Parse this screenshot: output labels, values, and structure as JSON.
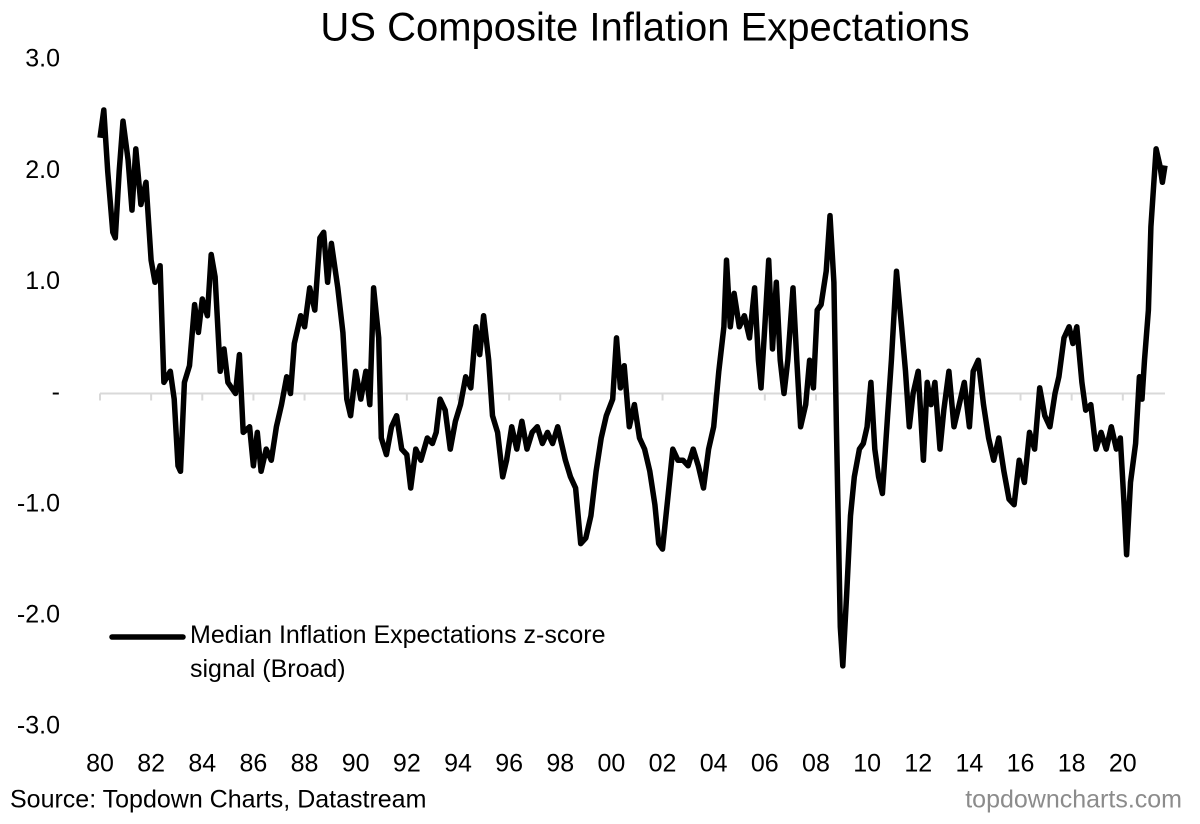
{
  "chart_data": {
    "type": "line",
    "title": "US Composite Inflation Expectations",
    "source": "Source: Topdown Charts, Datastream",
    "watermark": "topdowncharts.com",
    "legend": "lower left",
    "xlim": [
      1980,
      2021.65
    ],
    "xticks": [
      {
        "value": 1980,
        "label": "80"
      },
      {
        "value": 1982,
        "label": "82"
      },
      {
        "value": 1984,
        "label": "84"
      },
      {
        "value": 1986,
        "label": "86"
      },
      {
        "value": 1988,
        "label": "88"
      },
      {
        "value": 1990,
        "label": "90"
      },
      {
        "value": 1992,
        "label": "92"
      },
      {
        "value": 1994,
        "label": "94"
      },
      {
        "value": 1996,
        "label": "96"
      },
      {
        "value": 1998,
        "label": "98"
      },
      {
        "value": 2000,
        "label": "00"
      },
      {
        "value": 2002,
        "label": "02"
      },
      {
        "value": 2004,
        "label": "04"
      },
      {
        "value": 2006,
        "label": "06"
      },
      {
        "value": 2008,
        "label": "08"
      },
      {
        "value": 2010,
        "label": "10"
      },
      {
        "value": 2012,
        "label": "12"
      },
      {
        "value": 2014,
        "label": "14"
      },
      {
        "value": 2016,
        "label": "16"
      },
      {
        "value": 2018,
        "label": "18"
      },
      {
        "value": 2020,
        "label": "20"
      }
    ],
    "ylim": [
      -3,
      3
    ],
    "yticks": [
      {
        "value": 3,
        "label": "3.0"
      },
      {
        "value": 2,
        "label": "2.0"
      },
      {
        "value": 1,
        "label": "1.0"
      },
      {
        "value": 0,
        "label": "-"
      },
      {
        "value": -1,
        "label": "-1.0"
      },
      {
        "value": -2,
        "label": "-2.0"
      },
      {
        "value": -3,
        "label": "-3.0"
      }
    ],
    "x": [
      1980.0,
      1980.15,
      1980.3,
      1980.5,
      1980.6,
      1980.75,
      1980.9,
      1981.1,
      1981.25,
      1981.4,
      1981.6,
      1981.8,
      1982.0,
      1982.15,
      1982.35,
      1982.5,
      1982.75,
      1982.9,
      1983.05,
      1983.15,
      1983.3,
      1983.5,
      1983.7,
      1983.85,
      1984.0,
      1984.2,
      1984.35,
      1984.5,
      1984.7,
      1984.85,
      1985.0,
      1985.3,
      1985.45,
      1985.6,
      1985.85,
      1986.0,
      1986.15,
      1986.3,
      1986.5,
      1986.7,
      1986.9,
      1987.1,
      1987.3,
      1987.45,
      1987.6,
      1987.85,
      1988.0,
      1988.2,
      1988.4,
      1988.6,
      1988.75,
      1988.9,
      1989.05,
      1989.3,
      1989.5,
      1989.65,
      1989.8,
      1990.0,
      1990.2,
      1990.4,
      1990.55,
      1990.7,
      1990.9,
      1991.0,
      1991.2,
      1991.4,
      1991.6,
      1991.8,
      1992.0,
      1992.15,
      1992.35,
      1992.55,
      1992.8,
      1993.0,
      1993.15,
      1993.3,
      1993.5,
      1993.7,
      1993.9,
      1994.1,
      1994.3,
      1994.5,
      1994.7,
      1994.85,
      1995.0,
      1995.2,
      1995.35,
      1995.55,
      1995.75,
      1995.9,
      1996.1,
      1996.3,
      1996.5,
      1996.7,
      1996.9,
      1997.1,
      1997.3,
      1997.5,
      1997.7,
      1997.9,
      1998.2,
      1998.4,
      1998.6,
      1998.8,
      1999.0,
      1999.2,
      1999.4,
      1999.6,
      1999.8,
      2000.05,
      2000.2,
      2000.35,
      2000.5,
      2000.7,
      2000.9,
      2001.1,
      2001.3,
      2001.5,
      2001.7,
      2001.85,
      2002.0,
      2002.2,
      2002.4,
      2002.6,
      2002.8,
      2003.0,
      2003.2,
      2003.4,
      2003.6,
      2003.8,
      2004.0,
      2004.2,
      2004.4,
      2004.5,
      2004.65,
      2004.8,
      2005.0,
      2005.2,
      2005.4,
      2005.6,
      2005.75,
      2005.85,
      2006.0,
      2006.15,
      2006.3,
      2006.45,
      2006.6,
      2006.75,
      2006.9,
      2007.1,
      2007.25,
      2007.4,
      2007.6,
      2007.75,
      2007.9,
      2008.05,
      2008.2,
      2008.4,
      2008.55,
      2008.7,
      2008.8,
      2008.95,
      2009.05,
      2009.2,
      2009.35,
      2009.5,
      2009.7,
      2009.85,
      2010.0,
      2010.15,
      2010.3,
      2010.45,
      2010.6,
      2010.8,
      2010.95,
      2011.15,
      2011.35,
      2011.5,
      2011.65,
      2011.8,
      2012.0,
      2012.2,
      2012.35,
      2012.5,
      2012.65,
      2012.85,
      2013.0,
      2013.2,
      2013.4,
      2013.6,
      2013.8,
      2014.0,
      2014.15,
      2014.35,
      2014.55,
      2014.75,
      2014.95,
      2015.15,
      2015.35,
      2015.55,
      2015.75,
      2015.95,
      2016.15,
      2016.35,
      2016.55,
      2016.75,
      2016.95,
      2017.15,
      2017.35,
      2017.5,
      2017.7,
      2017.9,
      2018.05,
      2018.2,
      2018.4,
      2018.55,
      2018.75,
      2018.95,
      2019.15,
      2019.35,
      2019.55,
      2019.75,
      2019.9,
      2020.05,
      2020.15,
      2020.3,
      2020.5,
      2020.65,
      2020.75,
      2020.85,
      2021.0,
      2021.1,
      2021.3,
      2021.45,
      2021.55,
      2021.65
    ],
    "series": [
      {
        "name": "Median Inflation Expectations z-score signal (Broad)",
        "color": "#000000",
        "values": [
          2.3,
          2.55,
          2.0,
          1.45,
          1.4,
          2.0,
          2.45,
          2.1,
          1.65,
          2.2,
          1.7,
          1.9,
          1.2,
          1.0,
          1.15,
          0.1,
          0.2,
          -0.05,
          -0.65,
          -0.7,
          0.1,
          0.25,
          0.8,
          0.55,
          0.85,
          0.7,
          1.25,
          1.05,
          0.2,
          0.4,
          0.1,
          0.0,
          0.35,
          -0.35,
          -0.3,
          -0.65,
          -0.35,
          -0.7,
          -0.5,
          -0.6,
          -0.3,
          -0.1,
          0.15,
          0.0,
          0.45,
          0.7,
          0.6,
          0.95,
          0.75,
          1.4,
          1.45,
          1.0,
          1.35,
          0.95,
          0.55,
          -0.05,
          -0.2,
          0.2,
          -0.05,
          0.2,
          -0.1,
          0.95,
          0.5,
          -0.4,
          -0.55,
          -0.3,
          -0.2,
          -0.5,
          -0.55,
          -0.85,
          -0.5,
          -0.6,
          -0.4,
          -0.45,
          -0.35,
          -0.05,
          -0.15,
          -0.5,
          -0.25,
          -0.1,
          0.15,
          0.05,
          0.6,
          0.35,
          0.7,
          0.3,
          -0.2,
          -0.35,
          -0.75,
          -0.6,
          -0.3,
          -0.5,
          -0.25,
          -0.5,
          -0.35,
          -0.3,
          -0.45,
          -0.35,
          -0.45,
          -0.3,
          -0.6,
          -0.75,
          -0.85,
          -1.35,
          -1.3,
          -1.1,
          -0.7,
          -0.4,
          -0.2,
          -0.05,
          0.5,
          0.05,
          0.25,
          -0.3,
          -0.1,
          -0.4,
          -0.5,
          -0.7,
          -1.0,
          -1.35,
          -1.4,
          -0.95,
          -0.5,
          -0.6,
          -0.6,
          -0.65,
          -0.5,
          -0.65,
          -0.85,
          -0.5,
          -0.3,
          0.2,
          0.6,
          1.2,
          0.6,
          0.9,
          0.6,
          0.7,
          0.5,
          0.95,
          0.3,
          0.05,
          0.6,
          1.2,
          0.4,
          1.0,
          0.3,
          0.0,
          0.3,
          0.95,
          0.3,
          -0.3,
          -0.1,
          0.3,
          0.05,
          0.75,
          0.8,
          1.1,
          1.6,
          1.0,
          -0.3,
          -2.1,
          -2.45,
          -1.8,
          -1.1,
          -0.75,
          -0.5,
          -0.45,
          -0.3,
          0.1,
          -0.5,
          -0.75,
          -0.9,
          -0.2,
          0.3,
          1.1,
          0.6,
          0.2,
          -0.3,
          0.0,
          0.2,
          -0.6,
          0.1,
          -0.1,
          0.1,
          -0.5,
          -0.15,
          0.2,
          -0.3,
          -0.1,
          0.1,
          -0.3,
          0.2,
          0.3,
          -0.1,
          -0.4,
          -0.6,
          -0.4,
          -0.7,
          -0.95,
          -1.0,
          -0.6,
          -0.8,
          -0.35,
          -0.5,
          0.05,
          -0.2,
          -0.3,
          0.0,
          0.15,
          0.5,
          0.6,
          0.45,
          0.6,
          0.1,
          -0.15,
          -0.1,
          -0.5,
          -0.35,
          -0.5,
          -0.3,
          -0.5,
          -0.4,
          -1.0,
          -1.45,
          -0.8,
          -0.45,
          0.15,
          -0.05,
          0.3,
          0.75,
          1.5,
          2.2,
          2.05,
          1.9,
          2.05
        ]
      }
    ]
  }
}
